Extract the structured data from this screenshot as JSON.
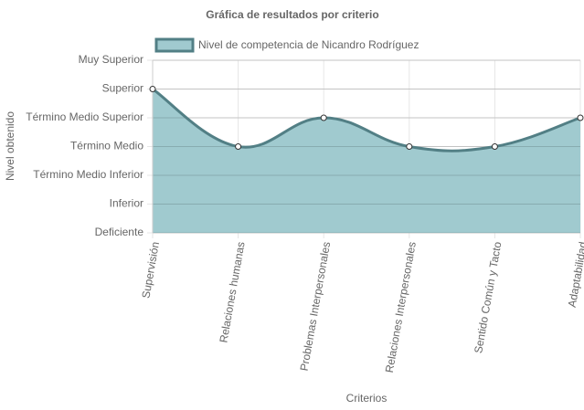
{
  "chart_data": {
    "type": "area",
    "title": "Gráfica de resultados por criterio",
    "x_label": "Criterios",
    "y_label": "Nivel obtenido",
    "categories": [
      "Supervisión",
      "Relaciones humanas",
      "Problemas Interpersonales",
      "Relaciones Interpersonales",
      "Sentido Común y Tacto",
      "Adaptabilidad"
    ],
    "series": [
      {
        "name": "Nivel de competencia de Nicandro Rodríguez",
        "color": "#527f85",
        "fill": "#a0cacf",
        "values": [
          5,
          3,
          4,
          3,
          3,
          4
        ]
      }
    ],
    "ylim": [
      0,
      6
    ],
    "yticks": [
      {
        "value": 0,
        "label": "Deficiente"
      },
      {
        "value": 1,
        "label": "Inferior"
      },
      {
        "value": 2,
        "label": "Término Medio Inferior"
      },
      {
        "value": 3,
        "label": "Término Medio"
      },
      {
        "value": 4,
        "label": "Término Medio Superior"
      },
      {
        "value": 5,
        "label": "Superior"
      },
      {
        "value": 6,
        "label": "Muy Superior"
      }
    ],
    "grid": true
  }
}
